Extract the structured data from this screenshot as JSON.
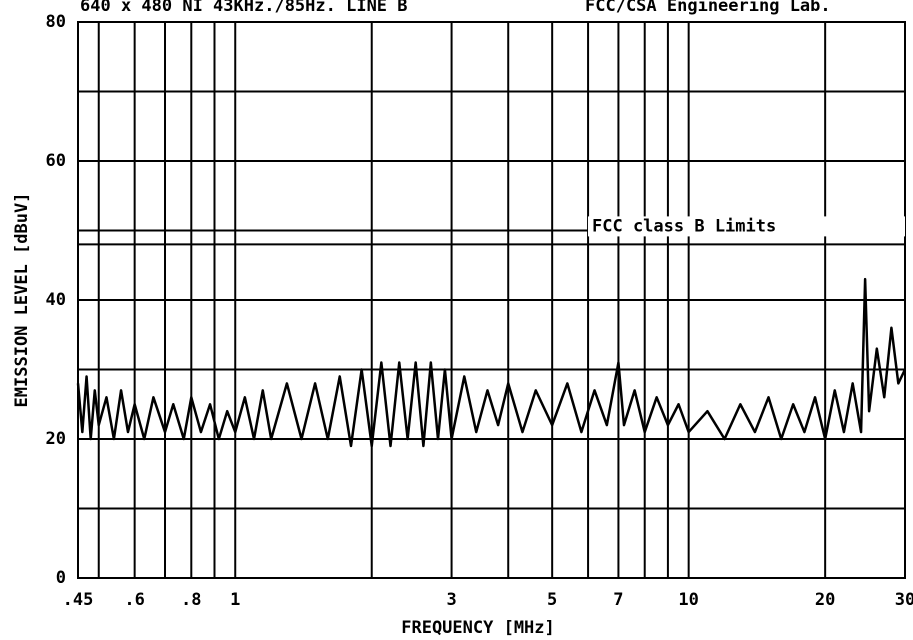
{
  "chart_data": {
    "type": "line",
    "title": "640 x 480 NI 43KHz./85Hz. LINE B",
    "subtitle": "FCC/CSA Engineering Lab.",
    "xlabel": "FREQUENCY [MHz]",
    "ylabel": "EMISSION LEVEL [dBuV]",
    "xlog": true,
    "xlim": [
      0.45,
      30
    ],
    "ylim": [
      0,
      80
    ],
    "xticks": [
      {
        "value": 0.45,
        "label": ".45"
      },
      {
        "value": 0.6,
        "label": ".6"
      },
      {
        "value": 0.8,
        "label": ".8"
      },
      1,
      3,
      5,
      7,
      10,
      20,
      30
    ],
    "xminor": [
      0.5,
      0.7,
      0.9,
      2,
      4,
      6,
      8,
      9
    ],
    "yticks": [
      0,
      20,
      40,
      60,
      80
    ],
    "yminor": [
      10,
      30,
      50,
      70
    ],
    "grid": true,
    "limit": {
      "label": "FCC class B Limits",
      "value": 48
    },
    "x": [
      0.45,
      0.46,
      0.47,
      0.48,
      0.49,
      0.5,
      0.52,
      0.54,
      0.56,
      0.58,
      0.6,
      0.63,
      0.66,
      0.7,
      0.73,
      0.77,
      0.8,
      0.84,
      0.88,
      0.92,
      0.96,
      1.0,
      1.05,
      1.1,
      1.15,
      1.2,
      1.3,
      1.4,
      1.5,
      1.6,
      1.7,
      1.8,
      1.9,
      2.0,
      2.1,
      2.2,
      2.3,
      2.4,
      2.5,
      2.6,
      2.7,
      2.8,
      2.9,
      3.0,
      3.2,
      3.4,
      3.6,
      3.8,
      4.0,
      4.3,
      4.6,
      5.0,
      5.4,
      5.8,
      6.2,
      6.6,
      7.0,
      7.2,
      7.6,
      8.0,
      8.5,
      9.0,
      9.5,
      10,
      11,
      12,
      13,
      14,
      15,
      16,
      17,
      18,
      19,
      20,
      21,
      22,
      23,
      24,
      24.5,
      25,
      26,
      27,
      28,
      29,
      30
    ],
    "series": [
      {
        "color": "#000000",
        "values": [
          28,
          21,
          29,
          20,
          27,
          22,
          26,
          20,
          27,
          21,
          25,
          20,
          26,
          21,
          25,
          20,
          26,
          21,
          25,
          20,
          24,
          21,
          26,
          20,
          27,
          20,
          28,
          20,
          28,
          20,
          29,
          19,
          30,
          19,
          31,
          19,
          31,
          20,
          31,
          19,
          31,
          20,
          30,
          20,
          29,
          21,
          27,
          22,
          28,
          21,
          27,
          22,
          28,
          21,
          27,
          22,
          31,
          22,
          27,
          21,
          26,
          22,
          25,
          21,
          24,
          20,
          25,
          21,
          26,
          20,
          25,
          21,
          26,
          20,
          27,
          21,
          28,
          21,
          43,
          24,
          33,
          26,
          36,
          28,
          30
        ]
      }
    ]
  }
}
